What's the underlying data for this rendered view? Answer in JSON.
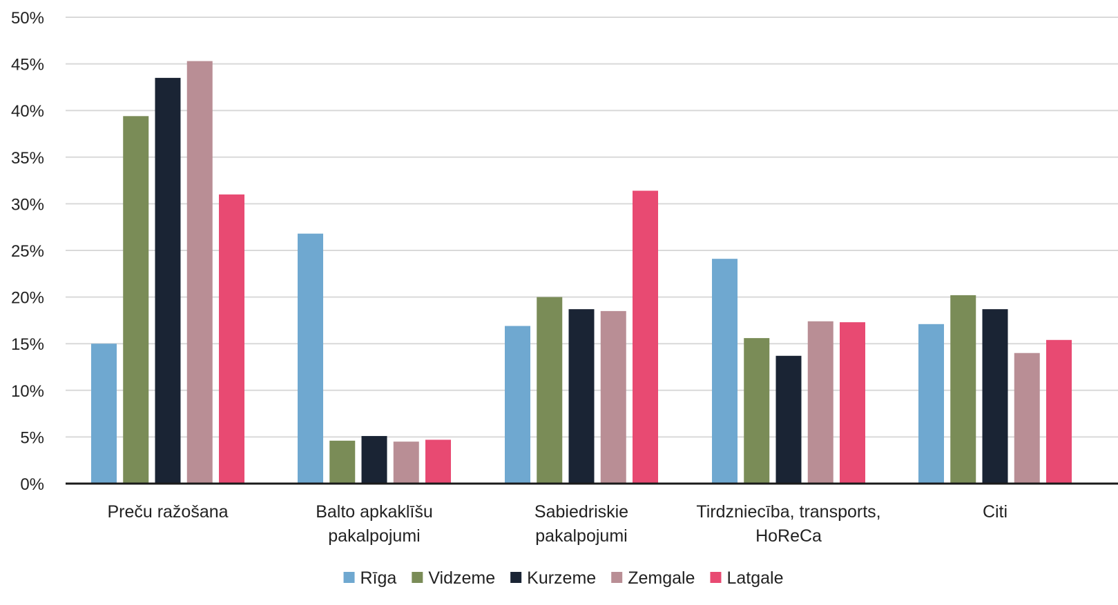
{
  "chart_data": {
    "type": "bar",
    "title": "",
    "xlabel": "",
    "ylabel": "",
    "ylim": [
      0,
      50
    ],
    "y_ticks": [
      "0%",
      "5%",
      "10%",
      "15%",
      "20%",
      "25%",
      "30%",
      "35%",
      "40%",
      "45%",
      "50%"
    ],
    "y_tick_values": [
      0,
      5,
      10,
      15,
      20,
      25,
      30,
      35,
      40,
      45,
      50
    ],
    "grid": true,
    "legend_position": "bottom",
    "categories": [
      [
        "Preču ražošana"
      ],
      [
        "Balto apkaklīšu",
        "pakalpojumi"
      ],
      [
        "Sabiedriskie",
        "pakalpojumi"
      ],
      [
        "Tirdzniecība, transports,",
        "HoReCa"
      ],
      [
        "Citi"
      ]
    ],
    "series": [
      {
        "name": "Rīga",
        "color": "#6FA8D0",
        "values": [
          15.0,
          26.8,
          16.9,
          24.1,
          17.1
        ]
      },
      {
        "name": "Vidzeme",
        "color": "#7A8C57",
        "values": [
          39.4,
          4.6,
          20.0,
          15.6,
          20.2
        ]
      },
      {
        "name": "Kurzeme",
        "color": "#1A2434",
        "values": [
          43.5,
          5.1,
          18.7,
          13.7,
          18.7
        ]
      },
      {
        "name": "Zemgale",
        "color": "#B98E95",
        "values": [
          45.3,
          4.5,
          18.5,
          17.4,
          14.0
        ]
      },
      {
        "name": "Latgale",
        "color": "#E84A72",
        "values": [
          31.0,
          4.7,
          31.4,
          17.3,
          15.4
        ]
      }
    ]
  }
}
